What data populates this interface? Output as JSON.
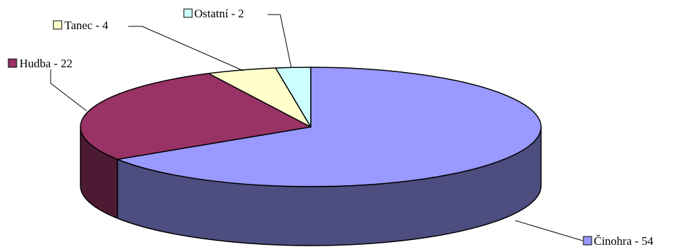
{
  "chart_data": {
    "type": "pie",
    "three_d": true,
    "start_angle": 0,
    "direction": "clockwise",
    "slices": [
      {
        "name": "Činohra",
        "value": 54,
        "label": "Činohra - 54",
        "color": "#9999ff",
        "side_color": "#4d4d80"
      },
      {
        "name": "Hudba",
        "value": 22,
        "label": "Hudba - 22",
        "color": "#993366",
        "side_color": "#4d1a33"
      },
      {
        "name": "Tanec",
        "value": 4,
        "label": "Tanec - 4",
        "color": "#ffffcc",
        "side_color": "#808066"
      },
      {
        "name": "Ostatní",
        "value": 2,
        "label": "Ostatní - 2",
        "color": "#ccffff",
        "side_color": "#668080"
      }
    ]
  }
}
